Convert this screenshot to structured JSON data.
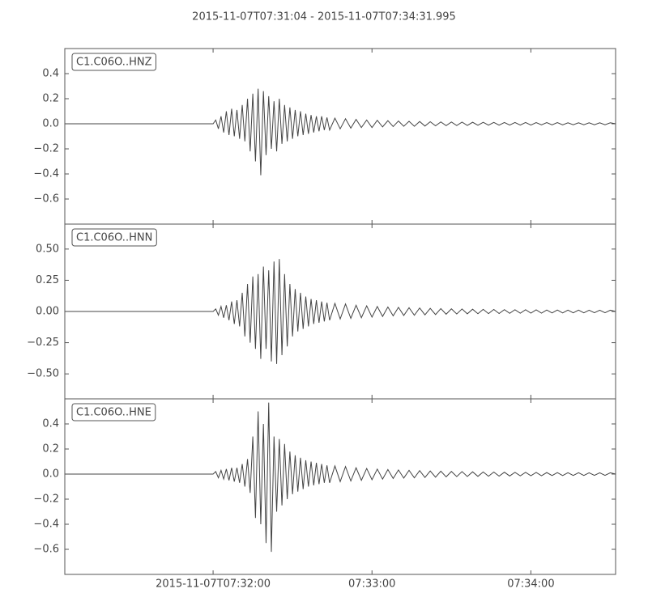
{
  "chart_data": [
    {
      "type": "line",
      "title": "2015-11-07T07:31:04  -  2015-11-07T07:34:31.995",
      "xlim": [
        0,
        207.995
      ],
      "ylim": [
        -0.8,
        0.6
      ],
      "yticks": [
        {
          "value": -0.6,
          "label": "−0.6"
        },
        {
          "value": -0.4,
          "label": "−0.4"
        },
        {
          "value": -0.2,
          "label": "−0.2"
        },
        {
          "value": 0,
          "label": "0.0"
        },
        0.2,
        0.4
      ],
      "x": [
        0,
        56,
        57,
        58,
        59,
        60,
        61,
        62,
        63,
        64,
        65,
        66,
        67,
        68,
        69,
        70,
        71,
        72,
        73,
        74,
        75,
        76,
        77,
        78,
        79,
        80,
        81,
        82,
        83,
        84,
        85,
        86,
        87,
        88,
        89,
        90,
        91,
        92,
        93,
        94,
        95,
        96,
        97,
        98,
        99,
        100,
        102,
        104,
        106,
        108,
        110,
        112,
        114,
        116,
        118,
        120,
        122,
        124,
        126,
        128,
        130,
        132,
        134,
        136,
        138,
        140,
        142,
        144,
        146,
        148,
        150,
        152,
        154,
        156,
        158,
        160,
        162,
        164,
        166,
        168,
        170,
        172,
        174,
        176,
        178,
        180,
        182,
        184,
        186,
        188,
        190,
        192,
        194,
        196,
        198,
        200,
        202,
        204,
        206,
        207.995
      ],
      "series": [
        {
          "name": "C1.C06O..HNZ",
          "color": "#444444",
          "values": [
            0,
            0,
            0.03,
            -0.04,
            0.06,
            -0.07,
            0.1,
            -0.09,
            0.12,
            -0.1,
            0.11,
            -0.12,
            0.15,
            -0.14,
            0.2,
            -0.22,
            0.24,
            -0.3,
            0.28,
            -0.41,
            0.26,
            -0.25,
            0.22,
            -0.2,
            0.18,
            -0.22,
            0.2,
            -0.16,
            0.15,
            -0.14,
            0.13,
            -0.12,
            0.11,
            -0.1,
            0.1,
            -0.09,
            0.08,
            -0.08,
            0.07,
            -0.07,
            0.06,
            -0.06,
            0.06,
            -0.05,
            0.05,
            -0.05,
            0.045,
            -0.04,
            0.04,
            -0.035,
            0.035,
            -0.03,
            0.03,
            -0.03,
            0.028,
            -0.025,
            0.025,
            -0.022,
            0.022,
            -0.02,
            0.02,
            -0.02,
            0.018,
            -0.018,
            0.016,
            -0.016,
            0.015,
            -0.015,
            0.014,
            -0.014,
            0.013,
            -0.013,
            0.012,
            -0.012,
            0.012,
            -0.011,
            0.011,
            -0.011,
            0.01,
            -0.01,
            0.01,
            -0.01,
            0.01,
            -0.01,
            0.009,
            -0.009,
            0.009,
            -0.009,
            0.009,
            -0.009,
            0.008,
            -0.008,
            0.008,
            -0.008,
            0.008,
            -0.008,
            0.008,
            -0.008,
            0.008,
            0
          ]
        }
      ]
    },
    {
      "type": "line",
      "xlim": [
        0,
        207.995
      ],
      "ylim": [
        -0.7,
        0.7
      ],
      "yticks": [
        {
          "value": -0.5,
          "label": "−0.50"
        },
        {
          "value": -0.25,
          "label": "−0.25"
        },
        {
          "value": 0,
          "label": "0.00"
        },
        {
          "value": 0.25,
          "label": "0.25"
        },
        {
          "value": 0.5,
          "label": "0.50"
        }
      ],
      "x": [
        0,
        56,
        57,
        58,
        59,
        60,
        61,
        62,
        63,
        64,
        65,
        66,
        67,
        68,
        69,
        70,
        71,
        72,
        73,
        74,
        75,
        76,
        77,
        78,
        79,
        80,
        81,
        82,
        83,
        84,
        85,
        86,
        87,
        88,
        89,
        90,
        91,
        92,
        93,
        94,
        95,
        96,
        97,
        98,
        99,
        100,
        102,
        104,
        106,
        108,
        110,
        112,
        114,
        116,
        118,
        120,
        122,
        124,
        126,
        128,
        130,
        132,
        134,
        136,
        138,
        140,
        142,
        144,
        146,
        148,
        150,
        152,
        154,
        156,
        158,
        160,
        162,
        164,
        166,
        168,
        170,
        172,
        174,
        176,
        178,
        180,
        182,
        184,
        186,
        188,
        190,
        192,
        194,
        196,
        198,
        200,
        202,
        204,
        206,
        207.995
      ],
      "series": [
        {
          "name": "C1.C06O..HNN",
          "color": "#444444",
          "values": [
            0,
            0,
            0.02,
            -0.03,
            0.04,
            -0.05,
            0.05,
            -0.07,
            0.08,
            -0.1,
            0.09,
            -0.12,
            0.15,
            -0.2,
            0.22,
            -0.25,
            0.28,
            -0.3,
            0.3,
            -0.38,
            0.36,
            -0.3,
            0.33,
            -0.4,
            0.4,
            -0.42,
            0.42,
            -0.35,
            0.3,
            -0.28,
            0.22,
            -0.2,
            0.18,
            -0.16,
            0.15,
            -0.14,
            0.12,
            -0.12,
            0.1,
            -0.1,
            0.09,
            -0.09,
            0.08,
            -0.08,
            0.07,
            -0.07,
            0.065,
            -0.06,
            0.06,
            -0.055,
            0.05,
            -0.05,
            0.045,
            -0.045,
            0.04,
            -0.04,
            0.036,
            -0.035,
            0.033,
            -0.032,
            0.03,
            -0.03,
            0.028,
            -0.027,
            0.025,
            -0.025,
            0.023,
            -0.022,
            0.021,
            -0.02,
            0.02,
            -0.019,
            0.018,
            -0.018,
            0.017,
            -0.017,
            0.016,
            -0.016,
            0.015,
            -0.015,
            0.014,
            -0.014,
            0.014,
            -0.013,
            0.013,
            -0.013,
            0.012,
            -0.012,
            0.012,
            -0.012,
            0.011,
            -0.011,
            0.011,
            -0.011,
            0.01,
            -0.01,
            0.01,
            -0.01,
            0.01,
            0
          ]
        }
      ]
    },
    {
      "type": "line",
      "xlim": [
        0,
        207.995
      ],
      "xticks": [
        {
          "value": 56,
          "label": "2015-11-07T07:32:00"
        },
        {
          "value": 116,
          "label": "07:33:00"
        },
        {
          "value": 176,
          "label": "07:34:00"
        }
      ],
      "ylim": [
        -0.8,
        0.6
      ],
      "yticks": [
        {
          "value": -0.6,
          "label": "−0.6"
        },
        {
          "value": -0.4,
          "label": "−0.4"
        },
        {
          "value": -0.2,
          "label": "−0.2"
        },
        {
          "value": 0,
          "label": "0.0"
        },
        0.2,
        0.4
      ],
      "x": [
        0,
        56,
        57,
        58,
        59,
        60,
        61,
        62,
        63,
        64,
        65,
        66,
        67,
        68,
        69,
        70,
        71,
        72,
        73,
        74,
        75,
        76,
        77,
        78,
        79,
        80,
        81,
        82,
        83,
        84,
        85,
        86,
        87,
        88,
        89,
        90,
        91,
        92,
        93,
        94,
        95,
        96,
        97,
        98,
        99,
        100,
        102,
        104,
        106,
        108,
        110,
        112,
        114,
        116,
        118,
        120,
        122,
        124,
        126,
        128,
        130,
        132,
        134,
        136,
        138,
        140,
        142,
        144,
        146,
        148,
        150,
        152,
        154,
        156,
        158,
        160,
        162,
        164,
        166,
        168,
        170,
        172,
        174,
        176,
        178,
        180,
        182,
        184,
        186,
        188,
        190,
        192,
        194,
        196,
        198,
        200,
        202,
        204,
        206,
        207.995
      ],
      "series": [
        {
          "name": "C1.C06O..HNE",
          "color": "#444444",
          "values": [
            0,
            0,
            0.02,
            -0.03,
            0.03,
            -0.04,
            0.04,
            -0.05,
            0.05,
            -0.06,
            0.05,
            -0.07,
            0.08,
            -0.1,
            0.12,
            -0.15,
            0.3,
            -0.35,
            0.5,
            -0.4,
            0.4,
            -0.55,
            0.57,
            -0.62,
            0.3,
            -0.3,
            0.28,
            -0.25,
            0.24,
            -0.2,
            0.18,
            -0.16,
            0.15,
            -0.14,
            0.13,
            -0.12,
            0.11,
            -0.1,
            0.1,
            -0.09,
            0.09,
            -0.08,
            0.08,
            -0.07,
            0.07,
            -0.07,
            0.065,
            -0.06,
            0.06,
            -0.055,
            0.05,
            -0.05,
            0.045,
            -0.045,
            0.04,
            -0.04,
            0.036,
            -0.035,
            0.033,
            -0.032,
            0.03,
            -0.03,
            0.028,
            -0.027,
            0.025,
            -0.025,
            0.023,
            -0.022,
            0.021,
            -0.02,
            0.02,
            -0.019,
            0.018,
            -0.018,
            0.017,
            -0.017,
            0.016,
            -0.016,
            0.015,
            -0.015,
            0.014,
            -0.014,
            0.014,
            -0.013,
            0.013,
            -0.013,
            0.012,
            -0.012,
            0.012,
            -0.012,
            0.011,
            -0.011,
            0.011,
            -0.011,
            0.01,
            -0.01,
            0.01,
            -0.01,
            0.01,
            0
          ]
        }
      ]
    }
  ]
}
